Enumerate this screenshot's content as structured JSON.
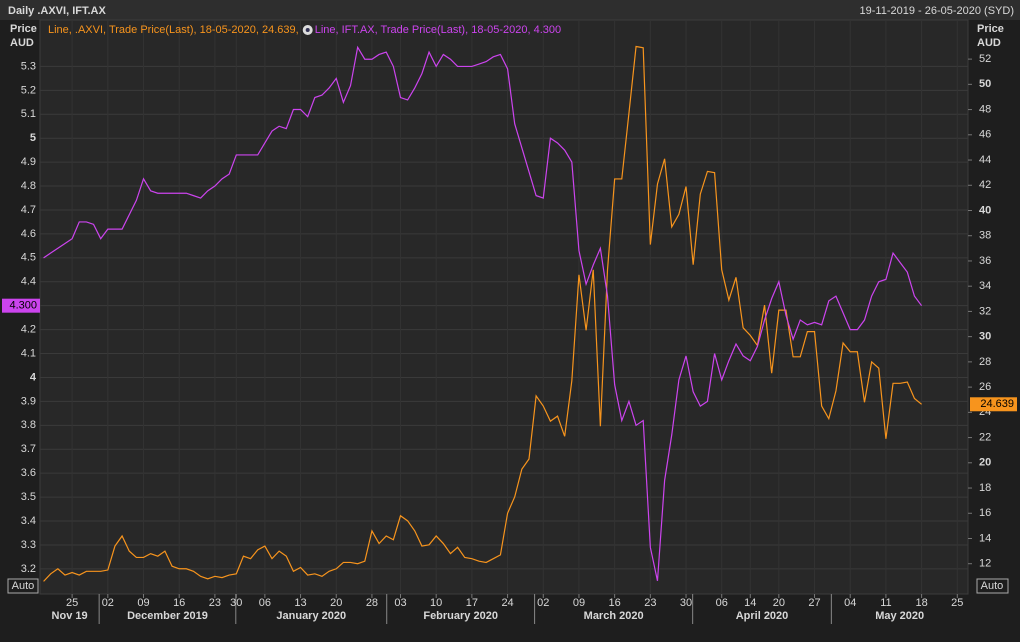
{
  "header": {
    "title": "Daily .AXVI, IFT.AX",
    "date_range": "19-11-2019 - 26-05-2020 (SYD)"
  },
  "chart_data": {
    "type": "line",
    "categories": [
      null,
      null,
      null,
      null,
      "25",
      null,
      null,
      null,
      null,
      "02",
      null,
      null,
      null,
      null,
      "09",
      null,
      null,
      null,
      null,
      "16",
      null,
      null,
      null,
      null,
      "23",
      null,
      null,
      "30",
      null,
      null,
      null,
      "06",
      null,
      null,
      null,
      null,
      "13",
      null,
      null,
      null,
      null,
      "20",
      null,
      null,
      null,
      null,
      "28",
      null,
      null,
      null,
      "03",
      null,
      null,
      null,
      null,
      "10",
      null,
      null,
      null,
      null,
      "17",
      null,
      null,
      null,
      null,
      "24",
      null,
      null,
      null,
      null,
      "02",
      null,
      null,
      null,
      null,
      "09",
      null,
      null,
      null,
      null,
      "16",
      null,
      null,
      null,
      null,
      "23",
      null,
      null,
      null,
      null,
      "30",
      null,
      null,
      null,
      null,
      "06",
      null,
      null,
      null,
      "14",
      null,
      null,
      null,
      "20",
      null,
      null,
      null,
      null,
      "27",
      null,
      null,
      null,
      null,
      "04",
      null,
      null,
      null,
      null,
      "11",
      null,
      null,
      null,
      null,
      "18",
      null,
      null,
      null,
      null,
      "25",
      null
    ],
    "months": [
      "Nov 19",
      "December 2019",
      "January 2020",
      "February 2020",
      "March 2020",
      "April 2020",
      "May 2020"
    ],
    "ylabel": [
      "Price",
      "AUD"
    ],
    "y2label": [
      "Price",
      "AUD"
    ],
    "ylim": [
      3.095,
      5.494
    ],
    "yticks": [
      3.2,
      3.3,
      3.4,
      3.5,
      3.6,
      3.7,
      3.8,
      3.9,
      4,
      4.1,
      4.2,
      4.3,
      4.4,
      4.5,
      4.6,
      4.7,
      4.8,
      4.9,
      5,
      5.1,
      5.2,
      5.3
    ],
    "y2lim": [
      9.6,
      55.1
    ],
    "y2ticks": [
      12,
      14,
      16,
      18,
      20,
      22,
      24,
      26,
      28,
      30,
      32,
      34,
      36,
      38,
      40,
      42,
      44,
      46,
      48,
      50,
      52
    ],
    "grid": true,
    "scale_buttons": [
      "Auto",
      "Auto"
    ],
    "series": [
      {
        "label": "Line, .AXVI, Trade Price(Last), 18-05-2020, 24.639,",
        "color": "#f7941d",
        "axis": "y2",
        "last_value_label": "24.639",
        "values": [
          10.6,
          11.2,
          11.6,
          11.1,
          11.3,
          11.1,
          11.4,
          11.4,
          11.4,
          11.5,
          13.4,
          14.2,
          13.0,
          12.5,
          12.5,
          12.8,
          12.6,
          13.0,
          11.8,
          11.6,
          11.6,
          11.4,
          11.0,
          10.8,
          11.0,
          10.9,
          11.1,
          11.2,
          12.6,
          12.4,
          13.1,
          13.4,
          12.4,
          13.0,
          12.6,
          11.4,
          11.7,
          11.1,
          11.2,
          11.0,
          11.4,
          11.6,
          12.1,
          12.1,
          12.0,
          12.2,
          14.6,
          13.6,
          14.2,
          13.9,
          15.8,
          15.4,
          14.6,
          13.4,
          13.5,
          14.2,
          13.6,
          12.8,
          13.3,
          12.5,
          12.4,
          12.2,
          12.1,
          12.4,
          12.7,
          16.0,
          17.3,
          19.5,
          20.3,
          25.3,
          24.5,
          23.3,
          23.7,
          22.1,
          26.5,
          34.9,
          30.5,
          35.3,
          22.9,
          35.3,
          42.5,
          42.5,
          47.7,
          53.0,
          52.9,
          37.3,
          42.1,
          44.1,
          38.7,
          39.7,
          41.9,
          35.7,
          41.3,
          43.1,
          43.0,
          35.3,
          32.9,
          34.7,
          30.7,
          30.1,
          29.3,
          32.5,
          27.1,
          32.1,
          32.1,
          28.4,
          28.4,
          30.4,
          30.4,
          24.5,
          23.5,
          25.7,
          29.5,
          28.8,
          28.8,
          24.8,
          28.0,
          27.5,
          21.9,
          26.3,
          26.3,
          26.4,
          25.1,
          24.639,
          null,
          null,
          null,
          null,
          null,
          null
        ]
      },
      {
        "label": "Line, IFT.AX, Trade Price(Last), 18-05-2020, 4.300",
        "color": "#cc44ee",
        "axis": "y",
        "last_value_label": "4.300",
        "values": [
          4.5,
          4.52,
          4.54,
          4.56,
          4.58,
          4.65,
          4.65,
          4.64,
          4.58,
          4.62,
          4.62,
          4.62,
          4.68,
          4.74,
          4.83,
          4.78,
          4.77,
          4.77,
          4.77,
          4.77,
          4.77,
          4.76,
          4.75,
          4.78,
          4.8,
          4.83,
          4.85,
          4.93,
          4.93,
          4.93,
          4.93,
          4.98,
          5.03,
          5.05,
          5.04,
          5.12,
          5.12,
          5.09,
          5.17,
          5.18,
          5.21,
          5.25,
          5.15,
          5.22,
          5.38,
          5.33,
          5.33,
          5.35,
          5.36,
          5.3,
          5.17,
          5.16,
          5.21,
          5.27,
          5.36,
          5.3,
          5.35,
          5.33,
          5.3,
          5.3,
          5.3,
          5.31,
          5.32,
          5.34,
          5.35,
          5.29,
          5.06,
          4.96,
          4.86,
          4.76,
          4.75,
          5.0,
          4.98,
          4.95,
          4.9,
          4.53,
          4.39,
          4.47,
          4.54,
          4.34,
          3.97,
          3.82,
          3.9,
          3.8,
          3.82,
          3.29,
          3.15,
          3.57,
          3.76,
          3.99,
          4.09,
          3.94,
          3.88,
          3.9,
          4.1,
          3.99,
          4.07,
          4.14,
          4.09,
          4.07,
          4.13,
          4.24,
          4.33,
          4.4,
          4.26,
          4.16,
          4.24,
          4.22,
          4.23,
          4.22,
          4.32,
          4.34,
          4.27,
          4.2,
          4.2,
          4.24,
          4.34,
          4.4,
          4.41,
          4.52,
          4.48,
          4.44,
          4.34,
          4.3,
          null,
          null,
          null,
          null,
          null,
          null
        ]
      }
    ]
  }
}
